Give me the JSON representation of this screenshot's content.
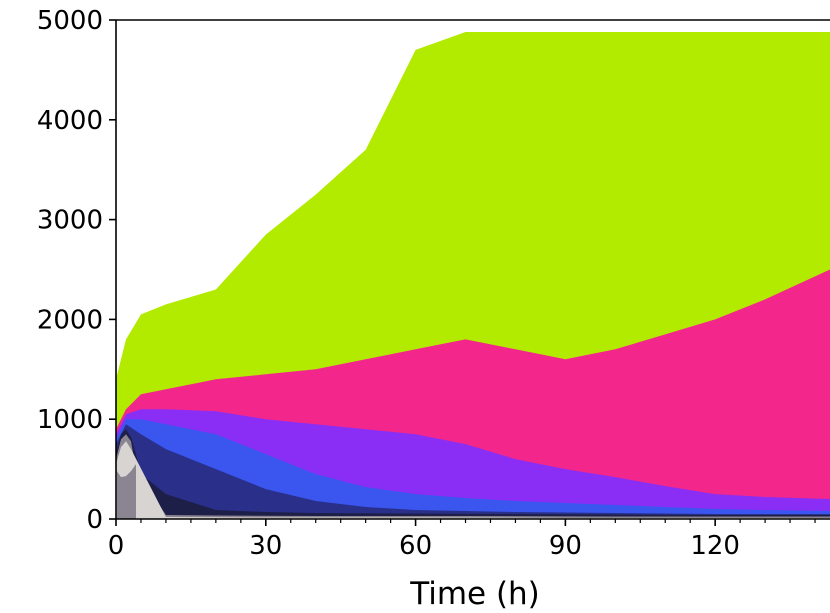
{
  "chart_data": {
    "type": "heatmap",
    "subtype": "filled-contour",
    "xlabel": "Time (h)",
    "ylabel": "",
    "xlim": [
      0,
      143
    ],
    "ylim": [
      0,
      5000
    ],
    "x_ticks": [
      0,
      30,
      60,
      90,
      120
    ],
    "y_ticks": [
      0,
      1000,
      2000,
      3000,
      4000,
      5000
    ],
    "grid": false,
    "colors": {
      "light_gray": "#d8d4d2",
      "gray": "#8a8590",
      "dark_navy": "#1d1f48",
      "navy": "#2a2f8a",
      "blue": "#3a56ee",
      "purple": "#8a2ef5",
      "magenta": "#f3268b",
      "lime": "#b2ea00",
      "background": "#ffffff"
    },
    "contour_bands": [
      {
        "band": "lime",
        "x": [
          0,
          2,
          5,
          10,
          20,
          30,
          40,
          50,
          60,
          70,
          75,
          90,
          110,
          130,
          143
        ],
        "y_upper": [
          1400,
          1800,
          2050,
          2150,
          2300,
          2850,
          3250,
          3700,
          4700,
          4880,
          4880,
          4880,
          4880,
          4880,
          4880
        ]
      },
      {
        "band": "magenta",
        "x": [
          0,
          2,
          5,
          10,
          20,
          30,
          40,
          50,
          60,
          70,
          80,
          90,
          100,
          110,
          120,
          130,
          143
        ],
        "y_upper": [
          900,
          1100,
          1250,
          1300,
          1400,
          1450,
          1500,
          1600,
          1700,
          1800,
          1700,
          1600,
          1700,
          1850,
          2000,
          2200,
          2500
        ]
      },
      {
        "band": "purple",
        "x": [
          0,
          2,
          5,
          10,
          20,
          30,
          40,
          50,
          60,
          70,
          80,
          90,
          100,
          110,
          120,
          130,
          143
        ],
        "y_upper": [
          850,
          1050,
          1100,
          1100,
          1080,
          1000,
          950,
          900,
          850,
          750,
          600,
          500,
          420,
          330,
          250,
          220,
          200
        ]
      },
      {
        "band": "blue",
        "x": [
          0,
          2,
          5,
          10,
          20,
          30,
          40,
          50,
          60,
          70,
          80,
          90,
          100,
          110,
          120,
          130,
          143
        ],
        "y_upper": [
          800,
          1000,
          1000,
          950,
          850,
          650,
          450,
          320,
          250,
          210,
          180,
          160,
          140,
          120,
          100,
          90,
          80
        ]
      },
      {
        "band": "navy",
        "x": [
          0,
          2,
          5,
          10,
          20,
          30,
          40,
          50,
          60,
          70,
          80,
          90,
          100,
          110,
          120,
          130,
          143
        ],
        "y_upper": [
          750,
          950,
          850,
          700,
          500,
          300,
          180,
          120,
          90,
          80,
          70,
          65,
          60,
          55,
          50,
          50,
          50
        ]
      },
      {
        "band": "dark_navy",
        "x": [
          0,
          1,
          2,
          3,
          4,
          5,
          10,
          20,
          30,
          40,
          60,
          80,
          100,
          120,
          143
        ],
        "y_upper": [
          650,
          850,
          900,
          820,
          650,
          450,
          250,
          90,
          70,
          60,
          55,
          50,
          45,
          40,
          40
        ]
      },
      {
        "band": "gray",
        "x": [
          0,
          1,
          2,
          3,
          4,
          10,
          20,
          40,
          70,
          100,
          143
        ],
        "y_upper": [
          600,
          800,
          850,
          780,
          500,
          40,
          35,
          30,
          30,
          25,
          25
        ]
      },
      {
        "band": "light_gray",
        "x": [
          0,
          1,
          2,
          3,
          10,
          30,
          60,
          90,
          143
        ],
        "y_upper": [
          550,
          720,
          780,
          700,
          20,
          15,
          15,
          10,
          10
        ]
      }
    ],
    "contour_holes": [
      {
        "band": "light_gray",
        "x": [
          0.5,
          1,
          2,
          3,
          3.5
        ],
        "y_lower": [
          500,
          450,
          480,
          530,
          600
        ]
      },
      {
        "band": "gray",
        "x": [
          0.2,
          1,
          2,
          3,
          4
        ],
        "y_lower": [
          480,
          420,
          430,
          480,
          550
        ]
      }
    ]
  }
}
